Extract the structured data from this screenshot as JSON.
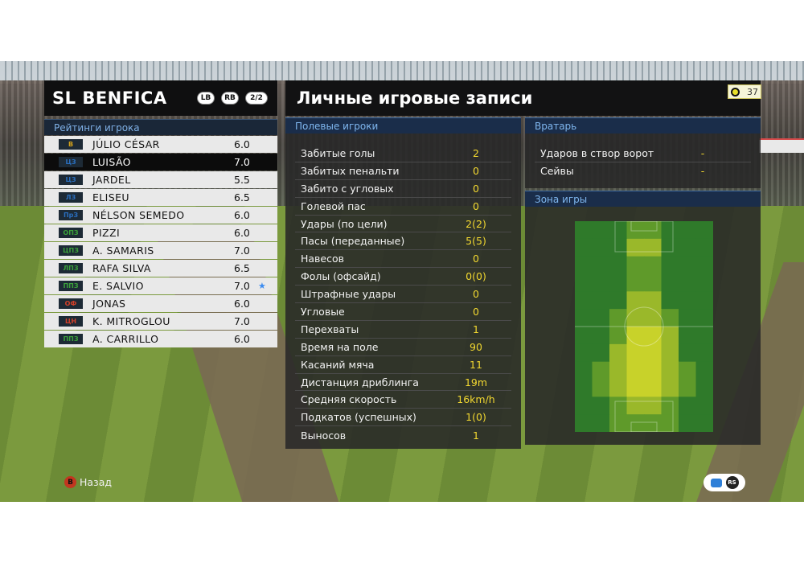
{
  "team": {
    "name": "SL BENFICA",
    "lb_label": "LB",
    "rb_label": "RB",
    "page": "2/2"
  },
  "players_section_title": "Рейтинги игрока",
  "players": [
    {
      "pos": "В",
      "pos_color": "#d4a21a",
      "name": "JÚLIO CÉSAR",
      "rating": "6.0",
      "selected": false,
      "starred": false
    },
    {
      "pos": "ЦЗ",
      "pos_color": "#2a6fbf",
      "name": "LUISÃO",
      "rating": "7.0",
      "selected": true,
      "starred": false
    },
    {
      "pos": "ЦЗ",
      "pos_color": "#2a6fbf",
      "name": "JARDEL",
      "rating": "5.5",
      "selected": false,
      "starred": false
    },
    {
      "pos": "ЛЗ",
      "pos_color": "#2a6fbf",
      "name": "ELISEU",
      "rating": "6.5",
      "selected": false,
      "starred": false
    },
    {
      "pos": "ПрЗ",
      "pos_color": "#2a6fbf",
      "name": "NÉLSON SEMEDO",
      "rating": "6.0",
      "selected": false,
      "starred": false
    },
    {
      "pos": "ОПЗ",
      "pos_color": "#3ba13b",
      "name": "PIZZI",
      "rating": "6.0",
      "selected": false,
      "starred": false
    },
    {
      "pos": "ЦПЗ",
      "pos_color": "#3ba13b",
      "name": "A. SAMARIS",
      "rating": "7.0",
      "selected": false,
      "starred": false
    },
    {
      "pos": "ЛПЗ",
      "pos_color": "#3ba13b",
      "name": "RAFA SILVA",
      "rating": "6.5",
      "selected": false,
      "starred": false
    },
    {
      "pos": "ППЗ",
      "pos_color": "#3ba13b",
      "name": "E. SALVIO",
      "rating": "7.0",
      "selected": false,
      "starred": true
    },
    {
      "pos": "ОФ",
      "pos_color": "#d2402a",
      "name": "JONAS",
      "rating": "6.0",
      "selected": false,
      "starred": false
    },
    {
      "pos": "ЦН",
      "pos_color": "#d2402a",
      "name": "K. MITROGLOU",
      "rating": "7.0",
      "selected": false,
      "starred": false
    },
    {
      "pos": "ППЗ",
      "pos_color": "#3ba13b",
      "name": "A. CARRILLO",
      "rating": "6.0",
      "selected": false,
      "starred": false
    }
  ],
  "main": {
    "title": "Личные игровые записи",
    "timer": "37",
    "field_players_title": "Полевые игроки",
    "goalkeeper_title": "Вратарь",
    "zone_title": "Зона игры"
  },
  "field_stats": [
    {
      "label": "Забитые голы",
      "value": "2"
    },
    {
      "label": "Забитых пенальти",
      "value": "0"
    },
    {
      "label": "Забито с угловых",
      "value": "0"
    },
    {
      "label": "Голевой пас",
      "value": "0"
    },
    {
      "label": "Удары (по цели)",
      "value": "2(2)"
    },
    {
      "label": "Пасы (переданные)",
      "value": "5(5)"
    },
    {
      "label": "Навесов",
      "value": "0"
    },
    {
      "label": "Фолы (офсайд)",
      "value": "0(0)"
    },
    {
      "label": "Штрафные удары",
      "value": "0"
    },
    {
      "label": "Угловые",
      "value": "0"
    },
    {
      "label": "Перехваты",
      "value": "1"
    },
    {
      "label": "Время на поле",
      "value": "90"
    },
    {
      "label": "Касаний мяча",
      "value": "11"
    },
    {
      "label": "Дистанция дриблинга",
      "value": "19m"
    },
    {
      "label": "Средняя скорость",
      "value": "16km/h"
    },
    {
      "label": "Подкатов (успешных)",
      "value": "1(0)"
    },
    {
      "label": "Выносов",
      "value": "1"
    }
  ],
  "gk_stats": [
    {
      "label": "Ударов в створ ворот",
      "value": "-"
    },
    {
      "label": "Сейвы",
      "value": "-"
    }
  ],
  "heatmap": {
    "cols": 8,
    "rows": 12,
    "cells": [
      [
        0,
        0,
        0,
        1,
        1,
        0,
        0,
        0
      ],
      [
        0,
        0,
        0,
        2,
        2,
        0,
        0,
        0
      ],
      [
        0,
        0,
        0,
        1,
        1,
        0,
        0,
        0
      ],
      [
        0,
        0,
        0,
        1,
        1,
        0,
        0,
        0
      ],
      [
        0,
        0,
        0,
        2,
        2,
        0,
        0,
        0
      ],
      [
        0,
        0,
        1,
        2,
        2,
        1,
        0,
        0
      ],
      [
        0,
        0,
        1,
        3,
        3,
        2,
        0,
        0
      ],
      [
        0,
        0,
        2,
        3,
        3,
        2,
        0,
        0
      ],
      [
        0,
        1,
        2,
        3,
        3,
        2,
        1,
        0
      ],
      [
        0,
        1,
        2,
        3,
        3,
        2,
        1,
        0
      ],
      [
        0,
        0,
        1,
        2,
        2,
        1,
        0,
        0
      ],
      [
        0,
        0,
        1,
        1,
        1,
        1,
        0,
        0
      ]
    ],
    "colors": [
      "#2f7a2a",
      "#5f9a2a",
      "#9ab82a",
      "#c8d22a"
    ]
  },
  "footer": {
    "back_button": "B",
    "back_label": "Назад",
    "rs_label": "RS"
  }
}
